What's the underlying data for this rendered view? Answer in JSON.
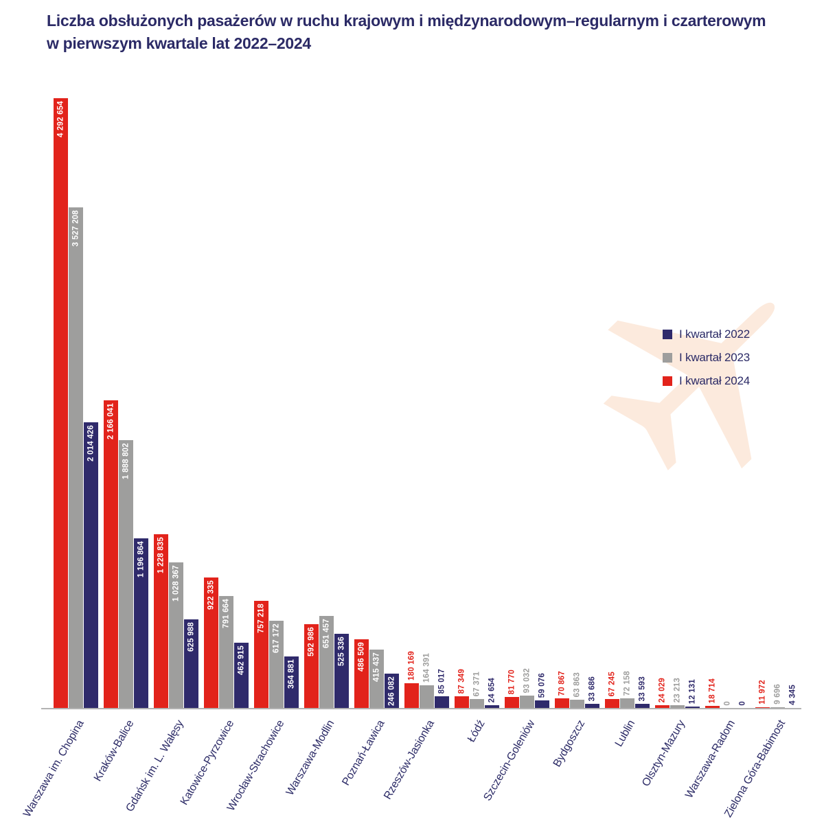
{
  "title": {
    "line1": "Liczba obsłużonych pasażerów w ruchu krajowym i międzynarodowym–regularnym i czarterowym",
    "line2": "w pierwszym kwartale lat 2022–2024"
  },
  "colors": {
    "navy": "#2f2a6b",
    "gray": "#9e9e9d",
    "red": "#e2231b",
    "title_text": "#2b2a66",
    "axis_line": "#b3b3b3",
    "plane_watermark": "#fceadd",
    "background": "#ffffff",
    "bar_label_inside": "#ffffff"
  },
  "legend": [
    {
      "label": "I kwartał 2022",
      "color": "#2f2a6b"
    },
    {
      "label": "I kwartał 2023",
      "color": "#9e9e9d"
    },
    {
      "label": "I kwartał 2024",
      "color": "#e2231b"
    }
  ],
  "chart_data": {
    "type": "bar",
    "title": "Liczba obsłużonych pasażerów w ruchu krajowym i międzynarodowym–regularnym i czarterowym w pierwszym kwartale lat 2022–2024",
    "categories": [
      "Warszawa im. Chopina",
      "Kraków-Balice",
      "Gdańsk im. L. Wałęsy",
      "Katowice-Pyrzowice",
      "Wrocław-Strachowice",
      "Warszawa-Modlin",
      "Poznań-Ławica",
      "Rzeszów-Jasionka",
      "Łódź",
      "Szczecin-Goleniów",
      "Bydgoszcz",
      "Lublin",
      "Olsztyn-Mazury",
      "Warszawa-Radom",
      "Zielona Góra-Babimost"
    ],
    "series": [
      {
        "name": "I kwartał 2022",
        "color": "#2f2a6b",
        "values": [
          2014426,
          1196864,
          625988,
          462915,
          364881,
          525336,
          246082,
          85017,
          24654,
          59076,
          33686,
          33593,
          12131,
          0,
          4345
        ]
      },
      {
        "name": "I kwartał 2023",
        "color": "#9e9e9d",
        "values": [
          3527208,
          1888802,
          1028367,
          791664,
          617172,
          651457,
          415437,
          164391,
          67371,
          93032,
          63863,
          72158,
          23213,
          0,
          9696
        ]
      },
      {
        "name": "I kwartał 2024",
        "color": "#e2231b",
        "values": [
          4292654,
          2166041,
          1228835,
          922335,
          757218,
          592986,
          486509,
          180169,
          87349,
          81770,
          70867,
          67245,
          24029,
          18714,
          11972
        ]
      }
    ],
    "bar_group_order": [
      "I kwartał 2024",
      "I kwartał 2023",
      "I kwartał 2022"
    ],
    "value_label_format": "thousands separated by space",
    "ylim": [
      0,
      4400000
    ],
    "grid": false,
    "y_axis_visible": false,
    "legend_position": "right-center",
    "x_tick_rotation_deg": 60
  }
}
